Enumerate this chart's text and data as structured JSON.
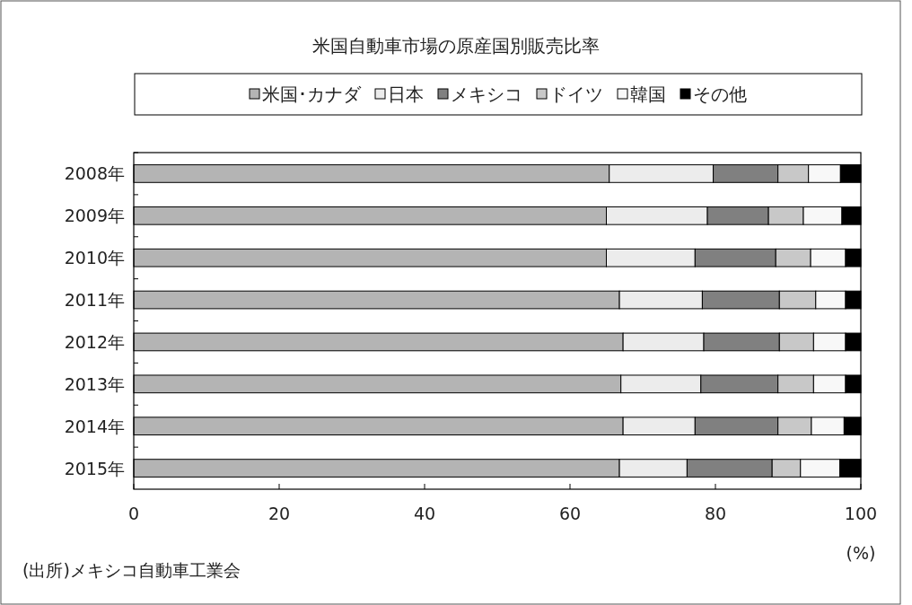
{
  "chart_data": {
    "type": "bar",
    "orientation": "horizontal",
    "stacked": true,
    "title": "米国自動車市場の原産国別販売比率",
    "categories": [
      "2008年",
      "2009年",
      "2010年",
      "2011年",
      "2012年",
      "2013年",
      "2014年",
      "2015年"
    ],
    "series": [
      {
        "name": "米国･カナダ",
        "color": "#b4b4b4",
        "values": [
          65.4,
          65.0,
          65.0,
          66.8,
          67.3,
          67.0,
          67.3,
          66.8
        ]
      },
      {
        "name": "日本",
        "color": "#ececec",
        "values": [
          14.3,
          13.9,
          12.2,
          11.4,
          11.1,
          11.0,
          9.9,
          9.3
        ]
      },
      {
        "name": "メキシコ",
        "color": "#808080",
        "values": [
          8.9,
          8.4,
          11.1,
          10.6,
          10.4,
          10.6,
          11.4,
          11.7
        ]
      },
      {
        "name": "ドイツ",
        "color": "#c8c8c8",
        "values": [
          4.2,
          4.8,
          4.8,
          5.0,
          4.7,
          4.9,
          4.6,
          3.9
        ]
      },
      {
        "name": "韓国",
        "color": "#f8f8f8",
        "values": [
          4.4,
          5.3,
          4.8,
          4.1,
          4.4,
          4.4,
          4.5,
          5.4
        ]
      },
      {
        "name": "その他",
        "color": "#000000",
        "values": [
          2.8,
          2.6,
          2.1,
          2.1,
          2.1,
          2.1,
          2.3,
          2.9
        ]
      }
    ],
    "xlim": [
      0,
      100
    ],
    "xticks": [
      0,
      20,
      40,
      60,
      80,
      100
    ],
    "xlabel": "(%)",
    "legend": "top",
    "grid": false,
    "annotations": [
      "(出所)メキシコ自動車工業会"
    ]
  }
}
